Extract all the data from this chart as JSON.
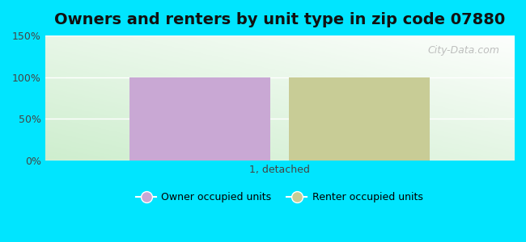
{
  "title": "Owners and renters by unit type in zip code 07880",
  "categories": [
    "1, detached"
  ],
  "owner_values": [
    100
  ],
  "renter_values": [
    100
  ],
  "owner_color": "#c9a8d4",
  "renter_color": "#c8cc96",
  "ylim": [
    0,
    150
  ],
  "yticks": [
    0,
    50,
    100,
    150
  ],
  "ytick_labels": [
    "0%",
    "50%",
    "100%",
    "150%"
  ],
  "bg_outer": "#00e5ff",
  "watermark": "City-Data.com",
  "legend_owner": "Owner occupied units",
  "legend_renter": "Renter occupied units",
  "bar_width": 0.3,
  "title_fontsize": 14
}
